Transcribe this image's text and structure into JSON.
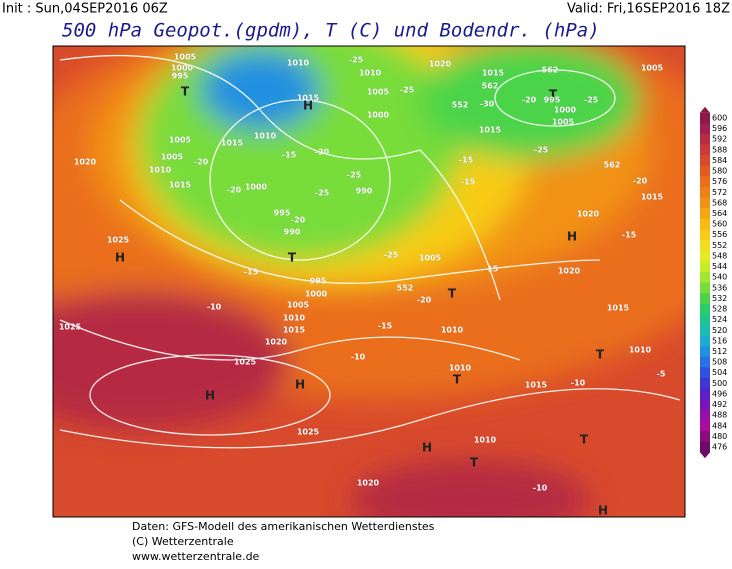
{
  "header": {
    "init": "Init : Sun,04SEP2016 06Z",
    "valid": "Valid: Fri,16SEP2016 18Z",
    "title": "500 hPa Geopot.(gpdm), T (C) und Bodendr. (hPa)"
  },
  "colorbar": {
    "labels": [
      600,
      596,
      592,
      588,
      584,
      580,
      576,
      572,
      568,
      564,
      560,
      556,
      552,
      548,
      544,
      540,
      536,
      532,
      528,
      524,
      520,
      516,
      512,
      508,
      504,
      500,
      496,
      492,
      488,
      484,
      480,
      476
    ],
    "colors": [
      "#8b1a4a",
      "#a3204e",
      "#b52c43",
      "#c93a38",
      "#d84a2c",
      "#e25c22",
      "#ea6e1c",
      "#ee8018",
      "#f29214",
      "#f5a614",
      "#f7ba14",
      "#f7cc18",
      "#f3de1e",
      "#e6ea24",
      "#c8ec2a",
      "#a4e630",
      "#78dc3a",
      "#4cd44a",
      "#2ccc6a",
      "#20c48c",
      "#1cbcb0",
      "#1cacd0",
      "#2090e0",
      "#2870e4",
      "#3050e0",
      "#4034d4",
      "#5c20c8",
      "#7a14b8",
      "#9410a8",
      "#a80c98",
      "#8c0c80",
      "#6c0c68"
    ]
  },
  "map_labels": [
    "1005",
    "1000",
    "995",
    "T",
    "1010",
    "-25",
    "1010",
    "1015",
    "H",
    "1005",
    "-25",
    "1000",
    "1020",
    "1015",
    "562",
    "552",
    "-30",
    "562",
    "T",
    "995",
    "-20",
    "1000",
    "1005",
    "-25",
    "1005",
    "1015",
    "-25",
    "1020",
    "1005",
    "-20",
    "1010",
    "1015",
    "-15",
    "1005",
    "-20",
    "1010",
    "1015",
    "-15",
    "-25",
    "1000",
    "-20",
    "990",
    "-25",
    "562",
    "-20",
    "1015",
    "995",
    "-20",
    "-15",
    "1025",
    "H",
    "990",
    "T",
    "1020",
    "H",
    "-15",
    "-15",
    "995",
    "-25",
    "1005",
    "1020",
    "1000",
    "-15",
    "552",
    "-20",
    "T",
    "-10",
    "1005",
    "1010",
    "1015",
    "1015",
    "1025",
    "-15",
    "1010",
    "1020",
    "T",
    "1010",
    "1025",
    "-10",
    "T",
    "1010",
    "1015",
    "-10",
    "-5",
    "H",
    "H",
    "1025",
    "H",
    "1010",
    "T",
    "T",
    "1020",
    "-10",
    "H"
  ],
  "footer": [
    "Daten: GFS-Modell des amerikanischen Wetterdienstes",
    "(C) Wetterzentrale",
    "www.wetterzentrale.de"
  ]
}
